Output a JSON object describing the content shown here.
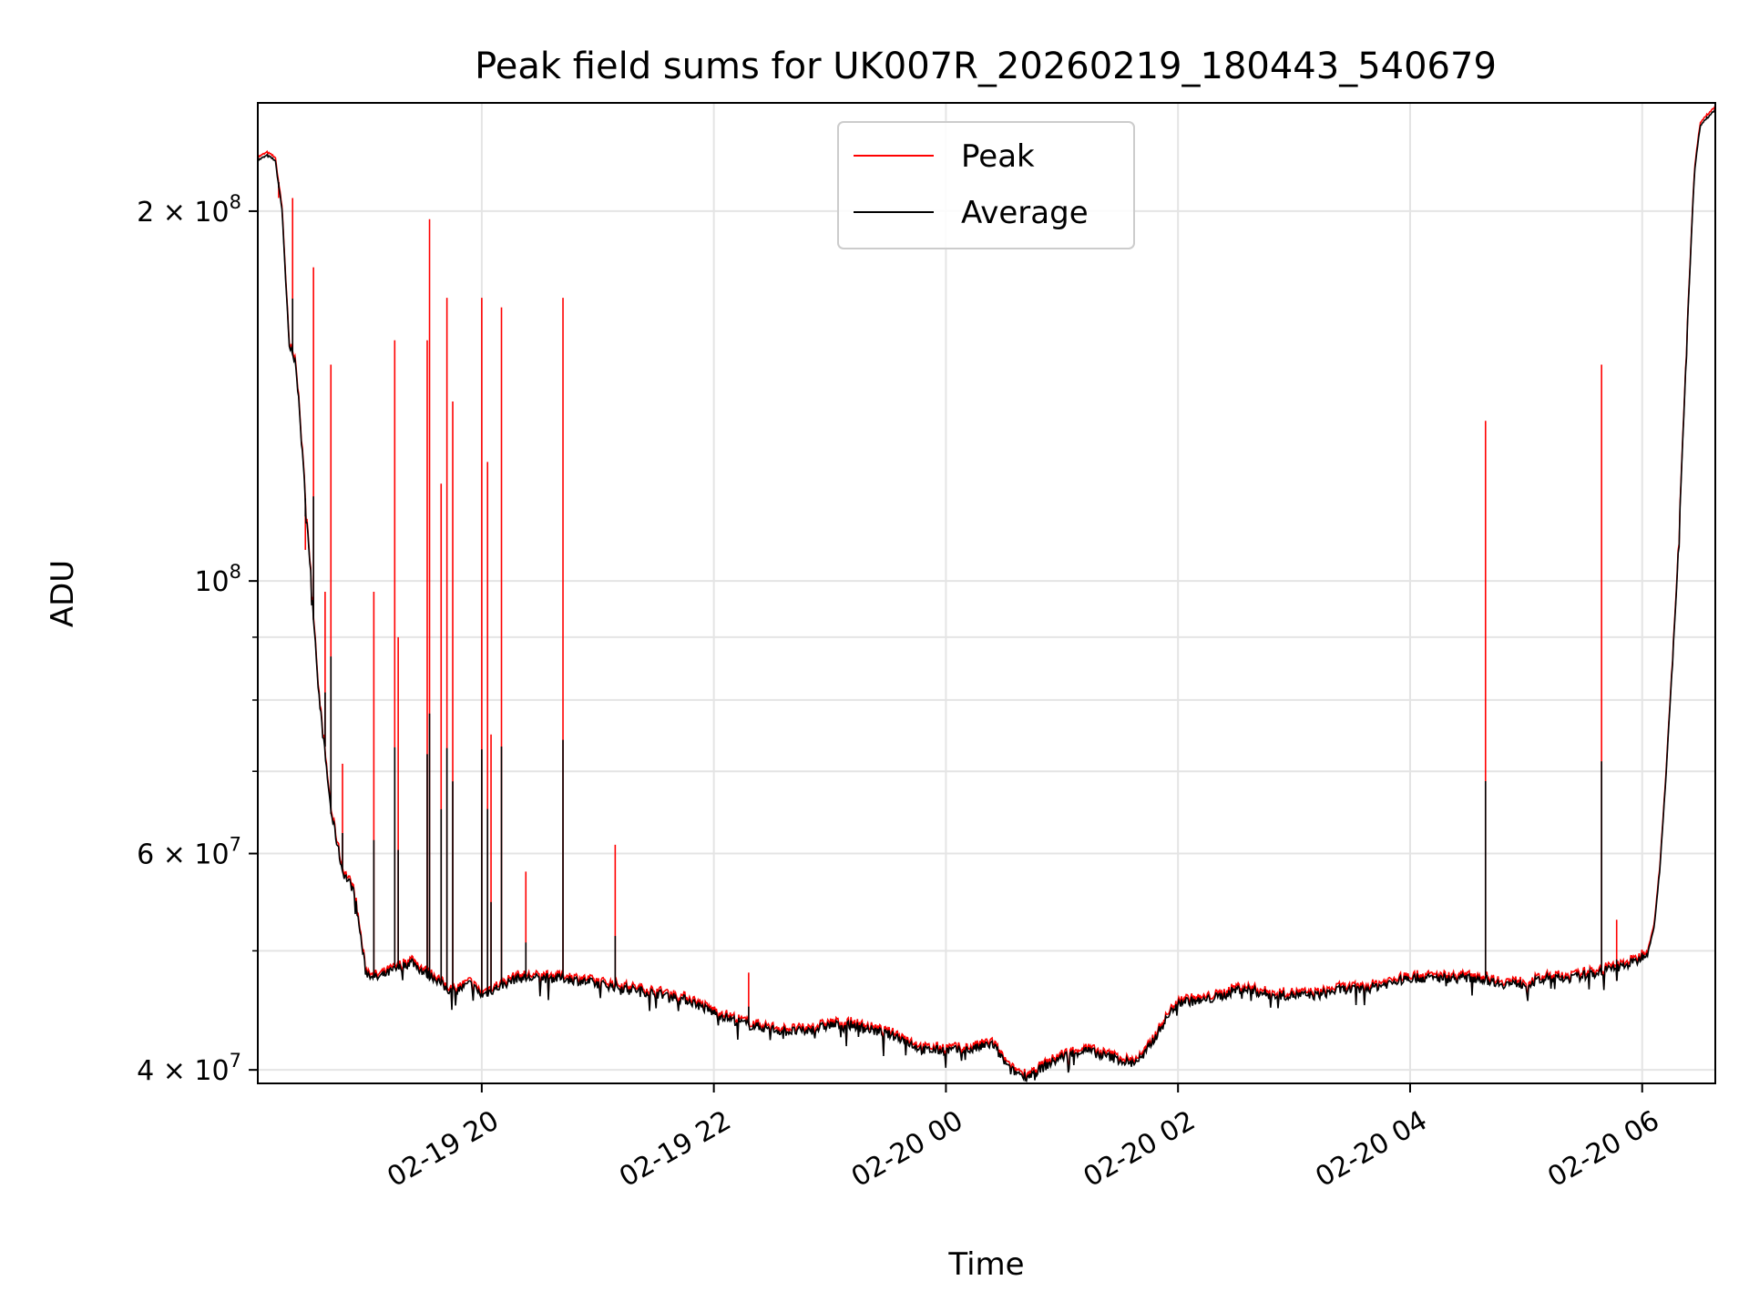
{
  "chart_data": {
    "type": "line",
    "title": "Peak field sums for UK007R_20260219_180443_540679",
    "xlabel": "Time",
    "ylabel": "ADU",
    "yscale": "log",
    "ylim": [
      39000000,
      245000000
    ],
    "xlim_hours": [
      -1.93,
      10.63
    ],
    "grid": true,
    "legend_loc": "upper center",
    "x_ticks": [
      {
        "hour": 0,
        "label": "02-19 20"
      },
      {
        "hour": 2,
        "label": "02-19 22"
      },
      {
        "hour": 4,
        "label": "02-20 00"
      },
      {
        "hour": 6,
        "label": "02-20 02"
      },
      {
        "hour": 8,
        "label": "02-20 04"
      },
      {
        "hour": 10,
        "label": "02-20 06"
      }
    ],
    "y_ticks": [
      {
        "value": 40000000,
        "base": "4 × 10",
        "exp": "7"
      },
      {
        "value": 60000000,
        "base": "6 × 10",
        "exp": "7"
      },
      {
        "value": 100000000,
        "base": "10",
        "exp": "8"
      },
      {
        "value": 200000000,
        "base": "2 × 10",
        "exp": "8"
      }
    ],
    "y_minor_ticks": [
      50000000,
      70000000,
      80000000,
      90000000
    ],
    "average_series": {
      "name": "Average",
      "color": "#000000",
      "x_hours": [
        -1.93,
        -1.85,
        -1.78,
        -1.72,
        -1.66,
        -1.6,
        -1.5,
        -1.4,
        -1.3,
        -1.2,
        -1.1,
        -1.0,
        -0.9,
        -0.8,
        -0.7,
        -0.6,
        -0.5,
        -0.4,
        -0.3,
        -0.2,
        -0.1,
        0.0,
        0.1,
        0.2,
        0.3,
        0.5,
        0.7,
        1.0,
        1.3,
        1.6,
        1.8,
        2.0,
        2.3,
        2.6,
        2.8,
        3.0,
        3.2,
        3.4,
        3.6,
        3.8,
        4.0,
        4.2,
        4.4,
        4.55,
        4.7,
        4.8,
        5.0,
        5.2,
        5.4,
        5.6,
        5.7,
        5.9,
        6.0,
        6.2,
        6.4,
        6.5,
        6.6,
        6.8,
        7.0,
        7.2,
        7.4,
        7.6,
        7.8,
        8.0,
        8.2,
        8.4,
        8.6,
        8.8,
        9.0,
        9.2,
        9.4,
        9.6,
        9.8,
        9.95,
        10.05,
        10.1,
        10.15,
        10.2,
        10.3,
        10.4,
        10.45,
        10.5,
        10.63
      ],
      "values": [
        220000000,
        222000000,
        220000000,
        200000000,
        155000000,
        150000000,
        110000000,
        80000000,
        65000000,
        58000000,
        56000000,
        48000000,
        47500000,
        48000000,
        48500000,
        49000000,
        48000000,
        47500000,
        46500000,
        46500000,
        47000000,
        46000000,
        46500000,
        47000000,
        47500000,
        47500000,
        47500000,
        47000000,
        46500000,
        46000000,
        45500000,
        44500000,
        43500000,
        43000000,
        43000000,
        43500000,
        43500000,
        43000000,
        42500000,
        41500000,
        41500000,
        41500000,
        42000000,
        40000000,
        39500000,
        40000000,
        41000000,
        41500000,
        41000000,
        40500000,
        41000000,
        44000000,
        45500000,
        45500000,
        46000000,
        46500000,
        46500000,
        46000000,
        46000000,
        46000000,
        46500000,
        46500000,
        47000000,
        47500000,
        47500000,
        47500000,
        47500000,
        47000000,
        47000000,
        47500000,
        47500000,
        48000000,
        48500000,
        49000000,
        50000000,
        52000000,
        58000000,
        68000000,
        100000000,
        170000000,
        215000000,
        235000000,
        242000000
      ]
    },
    "peak_series": {
      "name": "Peak",
      "color": "#ff0000",
      "spikes": [
        {
          "hour": -1.75,
          "value": 205000000
        },
        {
          "hour": -1.63,
          "value": 205000000
        },
        {
          "hour": -1.52,
          "value": 106000000
        },
        {
          "hour": -1.45,
          "value": 180000000
        },
        {
          "hour": -1.35,
          "value": 98000000
        },
        {
          "hour": -1.3,
          "value": 150000000
        },
        {
          "hour": -1.2,
          "value": 71000000
        },
        {
          "hour": -0.93,
          "value": 98000000
        },
        {
          "hour": -0.75,
          "value": 157000000
        },
        {
          "hour": -0.72,
          "value": 90000000
        },
        {
          "hour": -0.47,
          "value": 157000000
        },
        {
          "hour": -0.45,
          "value": 197000000
        },
        {
          "hour": -0.35,
          "value": 120000000
        },
        {
          "hour": -0.3,
          "value": 170000000
        },
        {
          "hour": -0.25,
          "value": 140000000
        },
        {
          "hour": 0.0,
          "value": 170000000
        },
        {
          "hour": 0.05,
          "value": 125000000
        },
        {
          "hour": 0.08,
          "value": 75000000
        },
        {
          "hour": 0.17,
          "value": 167000000
        },
        {
          "hour": 0.38,
          "value": 58000000
        },
        {
          "hour": 0.7,
          "value": 170000000
        },
        {
          "hour": 1.15,
          "value": 61000000
        },
        {
          "hour": 2.3,
          "value": 48000000
        },
        {
          "hour": 8.65,
          "value": 135000000
        },
        {
          "hour": 9.65,
          "value": 150000000
        },
        {
          "hour": 9.78,
          "value": 53000000
        }
      ]
    }
  }
}
